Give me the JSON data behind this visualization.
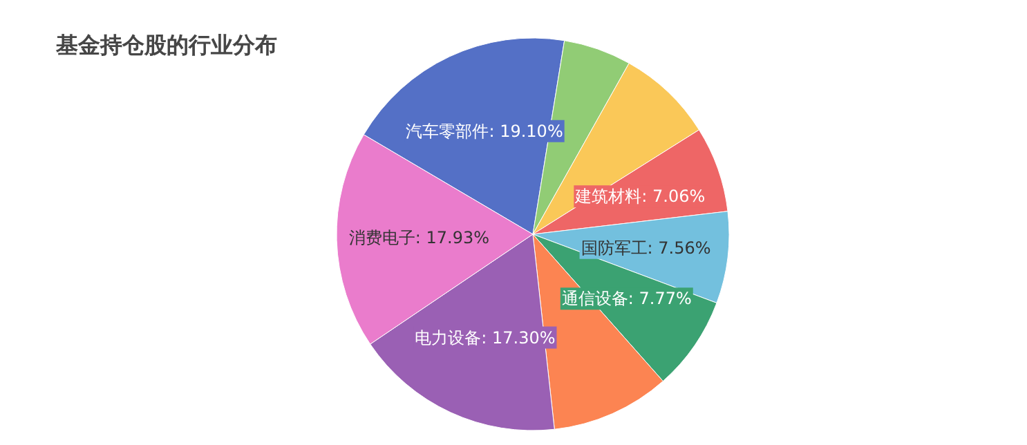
{
  "chart_data": {
    "type": "pie",
    "title": "基金持仓股的行业分布",
    "categories": [
      "汽车零部件",
      null,
      null,
      "建筑材料",
      "国防军工",
      "通信设备",
      null,
      "电力设备",
      "消费电子"
    ],
    "values": [
      19.1,
      5.58,
      7.92,
      7.06,
      7.56,
      7.77,
      9.78,
      17.3,
      17.93
    ],
    "colors": [
      "#5470c6",
      "#91cc75",
      "#fac858",
      "#ee6666",
      "#73c0de",
      "#3ba272",
      "#fc8452",
      "#9a60b4",
      "#ea7ccc"
    ],
    "value_labels": [
      "19.10%",
      null,
      null,
      "7.06%",
      "7.56%",
      "7.77%",
      null,
      "17.30%",
      "17.93%"
    ]
  }
}
